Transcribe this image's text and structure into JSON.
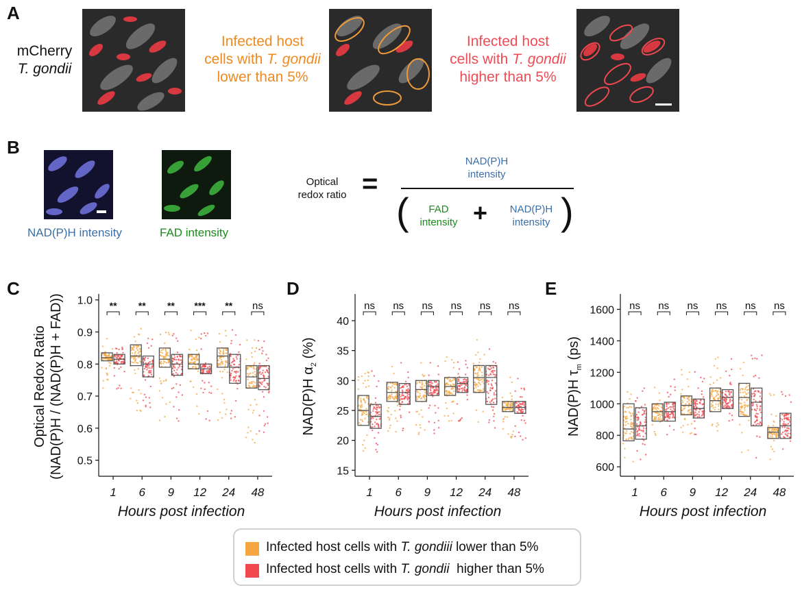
{
  "colors": {
    "low": "#f4a742",
    "high": "#f0484f",
    "low_text": "#ef8a1e",
    "high_text": "#ef4b55",
    "blue_text": "#3b6ea8",
    "green_text": "#1c8a1c",
    "box": "#555555"
  },
  "panel_a": {
    "letter": "A",
    "label_line1": "mCherry",
    "label_line2": "T. gondii",
    "low_line1": "Infected host",
    "low_line2_a": "cells with ",
    "low_line2_b": "T. gondii",
    "low_line3": "lower than 5%",
    "high_line1": "Infected host",
    "high_line2_a": "cells with ",
    "high_line2_b": "T. gondii",
    "high_line3": "higher than 5%"
  },
  "panel_b": {
    "letter": "B",
    "nadh_caption": "NAD(P)H intensity",
    "fad_caption": "FAD intensity",
    "eq_label_line1": "Optical",
    "eq_label_line2": "redox ratio",
    "equals": "=",
    "num_line1": "NAD(P)H",
    "num_line2": "intensity",
    "den_fad_line1": "FAD",
    "den_fad_line2": "intensity",
    "plus": "+",
    "den_nadh_line1": "NAD(P)H",
    "den_nadh_line2": "intensity",
    "lparen": "(",
    "rparen": ")"
  },
  "legend": {
    "low_a": "Infected host cells with ",
    "low_b": "T. gondiii",
    "low_c": " lower than 5%",
    "high_a": "Infected host cells with ",
    "high_b": "T. gondii",
    "high_c": "  higher than 5%"
  },
  "chart_data": [
    {
      "panel": "C",
      "type": "box",
      "xlabel": "Hours post infection",
      "ylabel_line1": "Optical Redox Ratio",
      "ylabel_line2": "(NAD(P)H / (NAD(P)H + FAD))",
      "categories": [
        "1",
        "6",
        "9",
        "12",
        "24",
        "48"
      ],
      "ylim": [
        0.45,
        1.01
      ],
      "yticks": [
        0.5,
        0.6,
        0.7,
        0.8,
        0.9,
        1.0
      ],
      "ytick_labels": [
        "0.5",
        "0.6",
        "0.7",
        "0.8",
        "0.9",
        "1.0"
      ],
      "significance": [
        "**",
        "**",
        "**",
        "***",
        "**",
        "ns"
      ],
      "series": [
        {
          "name": "Infected host cells with T. gondiii lower than 5%",
          "boxes": [
            [
              0.81,
              0.82,
              0.835
            ],
            [
              0.795,
              0.825,
              0.86
            ],
            [
              0.79,
              0.815,
              0.85
            ],
            [
              0.785,
              0.8,
              0.83
            ],
            [
              0.79,
              0.825,
              0.85
            ],
            [
              0.725,
              0.76,
              0.795
            ]
          ]
        },
        {
          "name": "Infected host cells with T. gondii  higher than 5%",
          "boxes": [
            [
              0.8,
              0.815,
              0.83
            ],
            [
              0.76,
              0.8,
              0.825
            ],
            [
              0.765,
              0.8,
              0.83
            ],
            [
              0.77,
              0.785,
              0.8
            ],
            [
              0.74,
              0.79,
              0.83
            ],
            [
              0.72,
              0.755,
              0.795
            ]
          ]
        }
      ],
      "spread": [
        [
          0.72,
          0.88
        ],
        [
          0.65,
          0.92
        ],
        [
          0.62,
          0.91
        ],
        [
          0.62,
          0.91
        ],
        [
          0.62,
          0.91
        ],
        [
          0.55,
          0.88
        ]
      ]
    },
    {
      "panel": "D",
      "type": "box",
      "xlabel": "Hours post infection",
      "ylabel_main": "NAD(P)H α",
      "ylabel_sub": "2",
      "ylabel_unit": " (%)",
      "categories": [
        "1",
        "6",
        "9",
        "12",
        "24",
        "48"
      ],
      "ylim": [
        14,
        44
      ],
      "yticks": [
        15,
        20,
        25,
        30,
        35,
        40
      ],
      "ytick_labels": [
        "15",
        "20",
        "25",
        "30",
        "35",
        "40"
      ],
      "significance": [
        "ns",
        "ns",
        "ns",
        "ns",
        "ns",
        "ns"
      ],
      "series": [
        {
          "name": "Infected host cells with T. gondiii lower than 5%",
          "boxes": [
            [
              22.5,
              25.0,
              27.5
            ],
            [
              26.5,
              28.0,
              29.7
            ],
            [
              26.5,
              28.5,
              30.0
            ],
            [
              27.5,
              29.0,
              30.5
            ],
            [
              28.0,
              30.5,
              32.5
            ],
            [
              24.8,
              25.5,
              26.5
            ]
          ]
        },
        {
          "name": "Infected host cells with T. gondii  higher than 5%",
          "boxes": [
            [
              22.0,
              24.0,
              26.0
            ],
            [
              26.0,
              28.0,
              29.5
            ],
            [
              27.5,
              29.0,
              30.0
            ],
            [
              28.0,
              29.5,
              30.5
            ],
            [
              26.0,
              30.5,
              32.5
            ],
            [
              24.5,
              25.5,
              26.5
            ]
          ]
        }
      ],
      "spread": [
        [
          18,
          32
        ],
        [
          21,
          33
        ],
        [
          21,
          33
        ],
        [
          23,
          34
        ],
        [
          22,
          37
        ],
        [
          20,
          31
        ]
      ]
    },
    {
      "panel": "E",
      "type": "box",
      "xlabel": "Hours post infection",
      "ylabel_main": "NAD(P)H τ",
      "ylabel_sub": "m",
      "ylabel_unit": " (ps)",
      "categories": [
        "1",
        "6",
        "9",
        "12",
        "24",
        "48"
      ],
      "ylim": [
        540,
        1680
      ],
      "yticks": [
        600,
        800,
        1000,
        1200,
        1400,
        1600
      ],
      "ytick_labels": [
        "600",
        "800",
        "1000",
        "1200",
        "1400",
        "1600"
      ],
      "significance": [
        "ns",
        "ns",
        "ns",
        "ns",
        "ns",
        "ns"
      ],
      "series": [
        {
          "name": "Infected host cells with T. gondiii lower than 5%",
          "boxes": [
            [
              765,
              840,
              1000
            ],
            [
              890,
              950,
              1000
            ],
            [
              930,
              990,
              1050
            ],
            [
              950,
              1020,
              1100
            ],
            [
              920,
              1040,
              1130
            ],
            [
              780,
              820,
              850
            ]
          ]
        },
        {
          "name": "Infected host cells with T. gondii  higher than 5%",
          "boxes": [
            [
              775,
              860,
              975
            ],
            [
              890,
              950,
              1010
            ],
            [
              910,
              970,
              1030
            ],
            [
              970,
              1040,
              1090
            ],
            [
              860,
              1010,
              1100
            ],
            [
              780,
              860,
              940
            ]
          ]
        }
      ],
      "spread": [
        [
          620,
          1110
        ],
        [
          780,
          1180
        ],
        [
          800,
          1220
        ],
        [
          820,
          1300
        ],
        [
          640,
          1330
        ],
        [
          620,
          1080
        ]
      ]
    }
  ]
}
